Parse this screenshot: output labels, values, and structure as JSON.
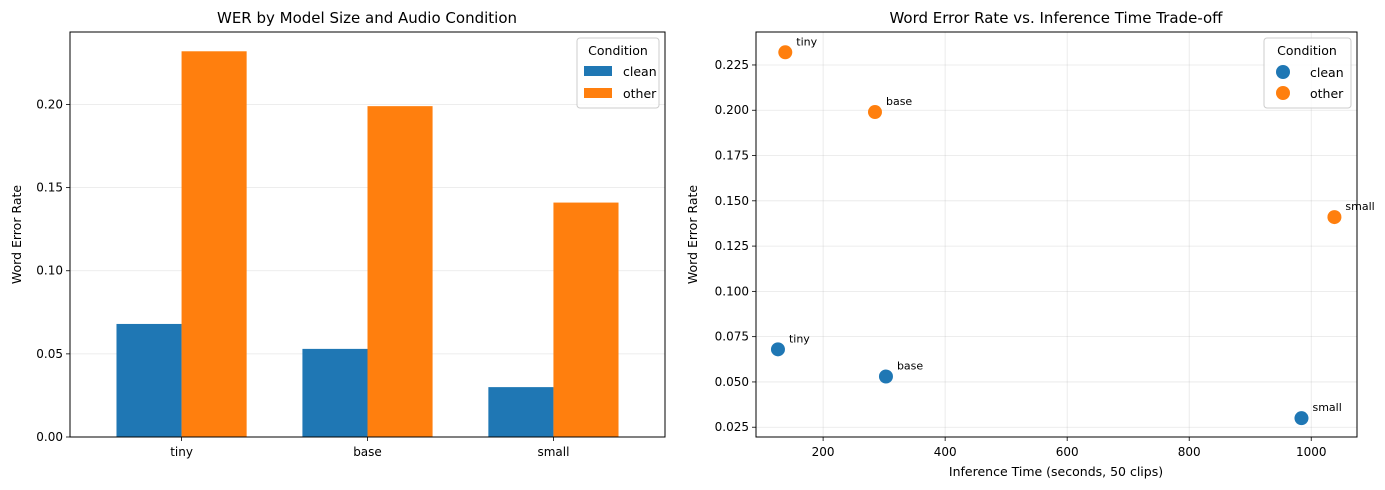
{
  "chart_data": [
    {
      "type": "bar",
      "title": "WER by Model Size and Audio Condition",
      "xlabel": "",
      "ylabel": "Word Error Rate",
      "categories": [
        "tiny",
        "base",
        "small"
      ],
      "series": [
        {
          "name": "clean",
          "color": "#1f77b4",
          "values": [
            0.068,
            0.053,
            0.03
          ]
        },
        {
          "name": "other",
          "color": "#ff7f0e",
          "values": [
            0.232,
            0.199,
            0.141
          ]
        }
      ],
      "ylim": [
        0,
        0.2436
      ],
      "yticks": [
        0.0,
        0.05,
        0.1,
        0.15,
        0.2
      ],
      "ytick_labels": [
        "0.00",
        "0.05",
        "0.10",
        "0.15",
        "0.20"
      ],
      "grid": "y-axis",
      "legend": {
        "title": "Condition",
        "position": "top-right"
      }
    },
    {
      "type": "scatter",
      "title": "Word Error Rate vs. Inference Time Trade-off",
      "xlabel": "Inference Time (seconds, 50 clips)",
      "ylabel": "Word Error Rate",
      "xlim": [
        90,
        1075
      ],
      "ylim": [
        0.0196,
        0.2432
      ],
      "xticks": [
        200,
        400,
        600,
        800,
        1000
      ],
      "xtick_labels": [
        "200",
        "400",
        "600",
        "800",
        "1000"
      ],
      "yticks": [
        0.025,
        0.05,
        0.075,
        0.1,
        0.125,
        0.15,
        0.175,
        0.2,
        0.225
      ],
      "ytick_labels": [
        "0.025",
        "0.050",
        "0.075",
        "0.100",
        "0.125",
        "0.150",
        "0.175",
        "0.200",
        "0.225"
      ],
      "grid": "both",
      "legend": {
        "title": "Condition",
        "position": "top-right"
      },
      "series": [
        {
          "name": "clean",
          "color": "#1f77b4",
          "points": [
            {
              "x": 126,
              "y": 0.068,
              "label": "tiny"
            },
            {
              "x": 303,
              "y": 0.053,
              "label": "base"
            },
            {
              "x": 984,
              "y": 0.03,
              "label": "small"
            }
          ]
        },
        {
          "name": "other",
          "color": "#ff7f0e",
          "points": [
            {
              "x": 138,
              "y": 0.232,
              "label": "tiny"
            },
            {
              "x": 285,
              "y": 0.199,
              "label": "base"
            },
            {
              "x": 1038,
              "y": 0.141,
              "label": "small"
            }
          ]
        }
      ]
    }
  ]
}
